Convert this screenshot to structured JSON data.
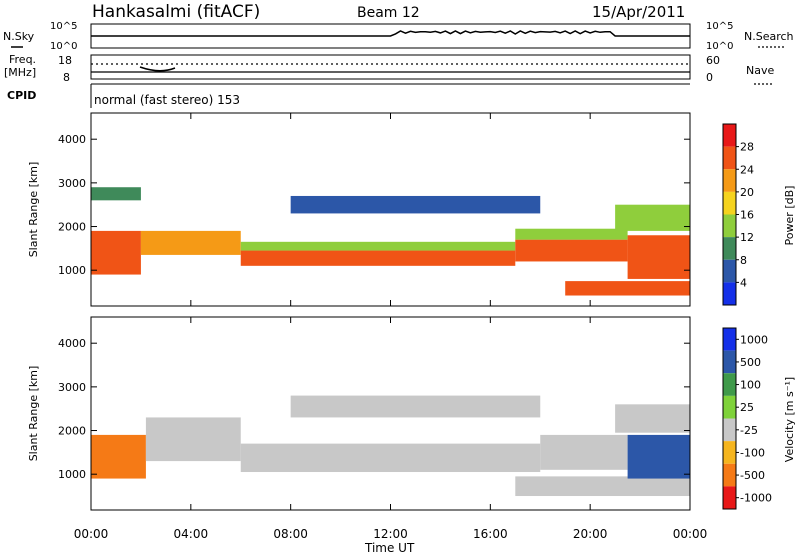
{
  "header": {
    "station": "Hankasalmi (fitACF)",
    "beam": "Beam 12",
    "date": "15/Apr/2011"
  },
  "noise_panel": {
    "left_label": "N.Sky",
    "right_label": "N.Search",
    "left_ticks": [
      "10^5",
      "10^0"
    ],
    "right_ticks": [
      "10^5",
      "10^0"
    ]
  },
  "freq_panel": {
    "left_label_1": "Freq.",
    "left_label_2": "[MHz]",
    "right_label": "Nave",
    "left_ticks": [
      "18",
      "8"
    ],
    "right_ticks": [
      "60",
      "0"
    ]
  },
  "cpid_panel": {
    "label": "CPID",
    "mode": "normal (fast stereo) 153"
  },
  "chart_data": [
    {
      "type": "heatmap",
      "parameter": "Power",
      "ylabel": "Slant Range [km]",
      "xlabel": "Time UT",
      "ylim": [
        180,
        4600
      ],
      "xlim": [
        0,
        24
      ],
      "yticks": [
        "1000",
        "2000",
        "3000",
        "4000"
      ],
      "xticks": [
        "00:00",
        "04:00",
        "08:00",
        "12:00",
        "16:00",
        "20:00",
        "00:00"
      ],
      "colorbar_label": "Power [dB]",
      "colorbar_ticks": [
        "4",
        "8",
        "12",
        "16",
        "20",
        "24",
        "28"
      ],
      "colorbar_range": [
        0,
        32
      ],
      "colors": [
        "#1430e8",
        "#2c57a8",
        "#3f8a5a",
        "#8fce3c",
        "#f5d31e",
        "#f59a16",
        "#f05416",
        "#e81818"
      ],
      "bands": [
        {
          "t0": 0.0,
          "t1": 2.0,
          "r0": 900,
          "r1": 1900,
          "level": 26
        },
        {
          "t0": 0.0,
          "t1": 2.0,
          "r0": 2600,
          "r1": 2900,
          "level": 8
        },
        {
          "t0": 2.0,
          "t1": 6.0,
          "r0": 1350,
          "r1": 1900,
          "level": 20
        },
        {
          "t0": 6.0,
          "t1": 17.0,
          "r0": 1100,
          "r1": 1450,
          "level": 26
        },
        {
          "t0": 6.0,
          "t1": 17.0,
          "r0": 1450,
          "r1": 1650,
          "level": 14
        },
        {
          "t0": 17.0,
          "t1": 21.5,
          "r0": 1200,
          "r1": 1700,
          "level": 27
        },
        {
          "t0": 17.0,
          "t1": 21.5,
          "r0": 1700,
          "r1": 1950,
          "level": 12
        },
        {
          "t0": 8.0,
          "t1": 18.0,
          "r0": 2300,
          "r1": 2700,
          "level": 7
        },
        {
          "t0": 19.0,
          "t1": 24.0,
          "r0": 420,
          "r1": 750,
          "level": 27
        },
        {
          "t0": 21.5,
          "t1": 24.0,
          "r0": 800,
          "r1": 1800,
          "level": 25
        },
        {
          "t0": 21.0,
          "t1": 24.0,
          "r0": 1900,
          "r1": 2500,
          "level": 14
        }
      ]
    },
    {
      "type": "heatmap",
      "parameter": "Velocity",
      "ylabel": "Slant Range [km]",
      "xlabel": "Time UT",
      "ylim": [
        180,
        4600
      ],
      "xlim": [
        0,
        24
      ],
      "yticks": [
        "1000",
        "2000",
        "3000",
        "4000"
      ],
      "xticks": [
        "00:00",
        "04:00",
        "08:00",
        "12:00",
        "16:00",
        "20:00",
        "00:00"
      ],
      "colorbar_label": "Velocity [m s⁻¹]",
      "colorbar_ticks": [
        "1000",
        "500",
        "100",
        "25",
        "-25",
        "-100",
        "-500",
        "-1000"
      ],
      "colors": [
        "#1430e8",
        "#2c57a8",
        "#3f9a4a",
        "#7fd23a",
        "#c8c8c8",
        "#f5b51e",
        "#f57a16",
        "#e81818"
      ],
      "bands": [
        {
          "t0": 0.0,
          "t1": 2.2,
          "r0": 900,
          "r1": 1900,
          "level": -300
        },
        {
          "t0": 2.2,
          "t1": 6.0,
          "r0": 1300,
          "r1": 2300,
          "level": 0
        },
        {
          "t0": 6.0,
          "t1": 18.0,
          "r0": 1050,
          "r1": 1700,
          "level": 0
        },
        {
          "t0": 18.0,
          "t1": 21.5,
          "r0": 1100,
          "r1": 1900,
          "level": 0
        },
        {
          "t0": 8.0,
          "t1": 18.0,
          "r0": 2300,
          "r1": 2800,
          "level": 0
        },
        {
          "t0": 17.0,
          "t1": 24.0,
          "r0": 500,
          "r1": 950,
          "level": 0
        },
        {
          "t0": 21.5,
          "t1": 24.0,
          "r0": 900,
          "r1": 1900,
          "level": 300
        },
        {
          "t0": 21.0,
          "t1": 24.0,
          "r0": 1950,
          "r1": 2600,
          "level": 0
        }
      ]
    }
  ]
}
